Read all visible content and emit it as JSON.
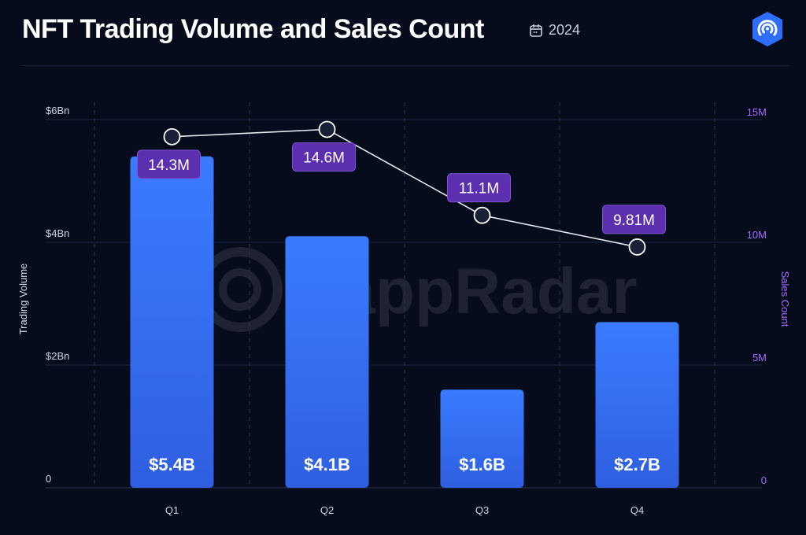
{
  "header": {
    "title": "NFT Trading Volume and Sales Count",
    "year": "2024",
    "logo_icon": "dappradar-logo-icon",
    "calendar_icon": "calendar-icon"
  },
  "watermark": "DappRadar",
  "colors": {
    "background": "#070c1c",
    "bar_top": "#3a7bff",
    "bar_bottom": "#2f5fe0",
    "line": "#e6e8ef",
    "label_bg": "#5b2fb0",
    "right_axis": "#a46bff",
    "logo": "#2f6dff"
  },
  "chart_data": {
    "type": "bar",
    "categories": [
      "Q1",
      "Q2",
      "Q3",
      "Q4"
    ],
    "series": [
      {
        "type": "bar",
        "axis": "left",
        "values": [
          5.4,
          4.1,
          1.6,
          2.7
        ],
        "data_labels": [
          "$5.4B",
          "$4.1B",
          "$1.6B",
          "$2.7B"
        ]
      },
      {
        "type": "line",
        "axis": "right",
        "values": [
          14.3,
          14.6,
          11.1,
          9.81
        ],
        "data_labels": [
          "14.3M",
          "14.6M",
          "11.1M",
          "9.81M"
        ]
      }
    ],
    "ylabel": "Trading Volume",
    "y2label": "Sales Count",
    "ylim": [
      0,
      6
    ],
    "y2lim": [
      0,
      15
    ],
    "yticks": [
      "0",
      "$2Bn",
      "$4Bn",
      "$6Bn"
    ],
    "y2ticks": [
      "0",
      "5M",
      "10M",
      "15M"
    ],
    "grid": true
  }
}
